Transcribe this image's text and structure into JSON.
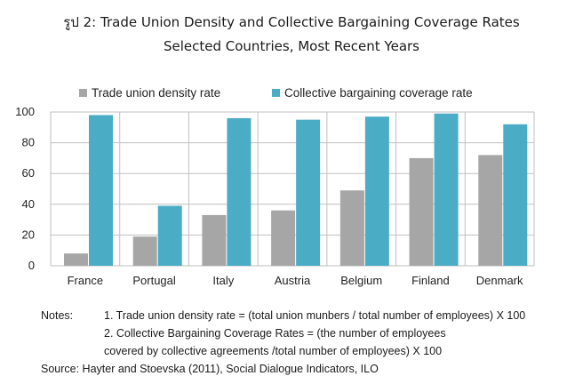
{
  "title": "รูป 2: Trade Union Density and Collective Bargaining Coverage Rates",
  "subtitle": "Selected Countries, Most Recent Years",
  "colors": {
    "density": "#a6a6a6",
    "coverage": "#4bacc6",
    "grid": "#bfbfbf"
  },
  "chart_data": {
    "type": "bar",
    "categories": [
      "France",
      "Portugal",
      "Italy",
      "Austria",
      "Belgium",
      "Finland",
      "Denmark"
    ],
    "series": [
      {
        "name": "Trade union density rate",
        "values": [
          8,
          19,
          33,
          36,
          49,
          70,
          72
        ]
      },
      {
        "name": "Collective bargaining coverage rate",
        "values": [
          98,
          39,
          96,
          95,
          97,
          99,
          92
        ]
      }
    ],
    "ylim": [
      0,
      100
    ],
    "yticks": [
      0,
      20,
      40,
      60,
      80,
      100
    ],
    "grid": true,
    "legend": "top"
  },
  "notes": {
    "label": "Notes:",
    "line1": "1. Trade union density rate = (total union munbers / total number of employees) X 100",
    "line2a": "2. Collective Bargaining Coverage Rates = (the number of employees",
    "line2b": "covered by collective agreements /total number of employees) X 100",
    "source": "Source: Hayter and Stoevska (2011), Social Dialogue Indicators, ILO"
  }
}
